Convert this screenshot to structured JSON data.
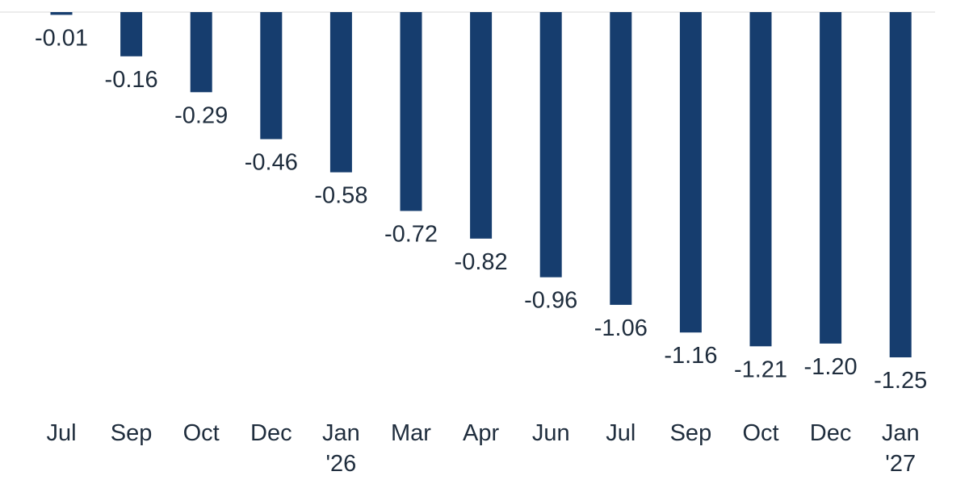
{
  "chart_data": {
    "type": "bar",
    "categories": [
      [
        "Jul"
      ],
      [
        "Sep"
      ],
      [
        "Oct"
      ],
      [
        "Dec"
      ],
      [
        "Jan",
        "'26"
      ],
      [
        "Mar"
      ],
      [
        "Apr"
      ],
      [
        "Jun"
      ],
      [
        "Jul"
      ],
      [
        "Sep"
      ],
      [
        "Oct"
      ],
      [
        "Dec"
      ],
      [
        "Jan",
        "'27"
      ]
    ],
    "values": [
      -0.01,
      -0.16,
      -0.29,
      -0.46,
      -0.58,
      -0.72,
      -0.82,
      -0.96,
      -1.06,
      -1.16,
      -1.21,
      -1.2,
      -1.25
    ],
    "value_labels": [
      "-0.01",
      "-0.16",
      "-0.29",
      "-0.46",
      "-0.58",
      "-0.72",
      "-0.82",
      "-0.96",
      "-1.06",
      "-1.16",
      "-1.21",
      "-1.20",
      "-1.25"
    ],
    "ylim": [
      -1.25,
      0
    ],
    "grid": false,
    "bar_color": "#163d6e",
    "title": "",
    "xlabel": "",
    "ylabel": ""
  }
}
